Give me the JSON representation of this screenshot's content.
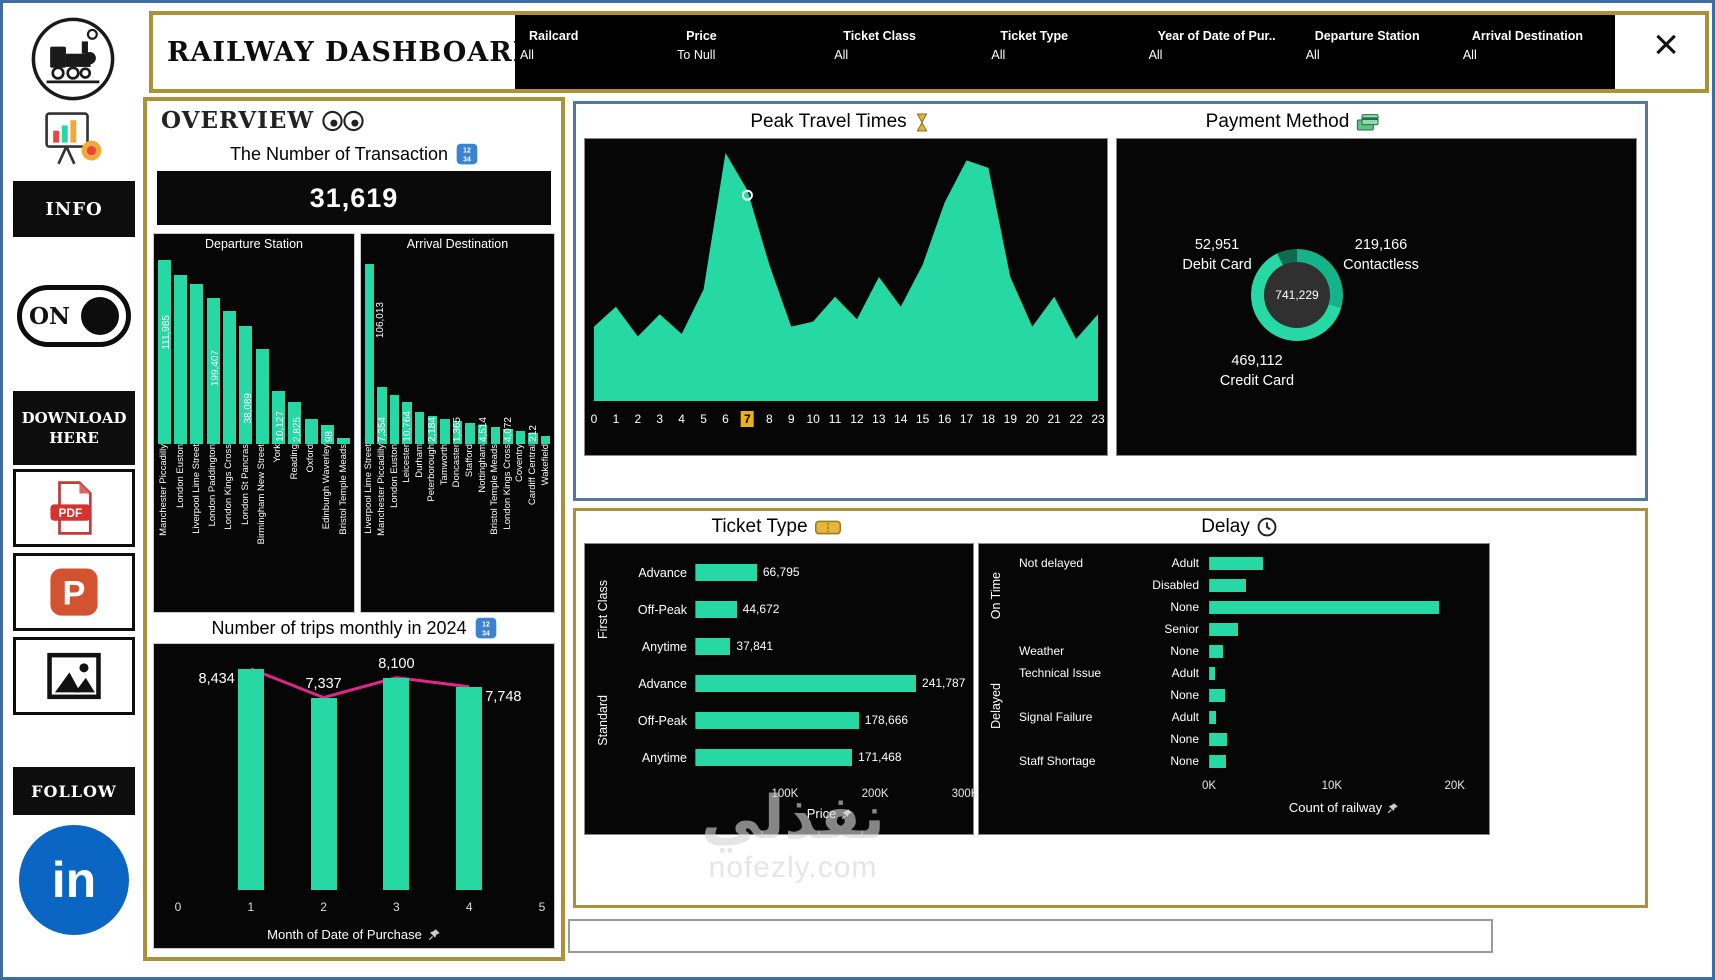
{
  "colors": {
    "teal": "#26D9A4",
    "gold": "#AB9239",
    "pink": "#E0268C",
    "highlight": "#EDB211",
    "panel_blue": "#54779E",
    "linkedin_blue": "#0A66C2"
  },
  "sidebar": {
    "info": "INFO",
    "toggle": "ON",
    "download": "DOWNLOAD HERE",
    "follow": "FOLLOW",
    "pdf": "PDF",
    "ppt": "P",
    "linkedin": "in"
  },
  "header": {
    "title": "RAILWAY DASHBOARD",
    "close_label": "×",
    "filters": [
      {
        "label": "Railcard",
        "value": "All"
      },
      {
        "label": "Price",
        "value": "To Null"
      },
      {
        "label": "Ticket Class",
        "value": "All"
      },
      {
        "label": "Ticket Type",
        "value": "All"
      },
      {
        "label": "Year of Date of Pur..",
        "value": "All"
      },
      {
        "label": "Departure Station",
        "value": "All"
      },
      {
        "label": "Arrival Destination",
        "value": "All"
      }
    ]
  },
  "overview": {
    "section_title": "OVERVIEW",
    "transaction_title": "The Number of Transaction",
    "transaction_value": "31,619"
  },
  "chart_data": {
    "departure_station": {
      "type": "bar",
      "title": "Departure Station",
      "categories": [
        "Manchester Piccadilly",
        "London Euston",
        "Liverpool Lime Street",
        "London Paddington",
        "London Kings Cross",
        "London St Pancras",
        "Birmingham New Street",
        "York",
        "Reading",
        "Oxford",
        "Edinburgh Waverley",
        "Bristol Temple Meads"
      ],
      "data_labels": [
        "",
        "111,985",
        "",
        "",
        "199,407",
        "",
        "38,089",
        "",
        "10,127",
        "2,825",
        "",
        "98"
      ],
      "values_pct": [
        97,
        89,
        84,
        77,
        70,
        62,
        50,
        28,
        22,
        13,
        10,
        3
      ]
    },
    "arrival_destination": {
      "type": "bar",
      "title": "Arrival Destination",
      "categories": [
        "Liverpool Lime Street",
        "Manchester Piccadilly",
        "London Euston",
        "Leicester",
        "Durham",
        "Peterborough",
        "Tamworth",
        "Doncaster",
        "Stafford",
        "Nottingham",
        "Bristol Temple Meads",
        "London Kings Cross",
        "Coventry",
        "Cardiff Central",
        "Wakefield"
      ],
      "data_labels": [
        "106,013",
        "",
        "7,354",
        "",
        "10,764",
        "",
        "2,184",
        "",
        "1,365",
        "",
        "4,514",
        "",
        "4,072",
        "",
        "212"
      ],
      "values_pct": [
        95,
        30,
        26,
        22,
        17,
        15,
        13,
        12,
        11,
        10,
        9,
        8,
        7,
        6,
        4
      ]
    },
    "monthly_trips": {
      "type": "bar-line",
      "title": "Number of trips monthly in 2024",
      "xlabel": "Month of Date of Purchase",
      "x": [
        1,
        2,
        3,
        4
      ],
      "values": [
        8434,
        7337,
        8100,
        7748
      ],
      "data_labels": [
        "8,434",
        "7,337",
        "8,100",
        "7,748"
      ],
      "x_ticks": [
        "0",
        "1",
        "2",
        "3",
        "4",
        "5"
      ],
      "ylim": [
        0,
        9000
      ]
    },
    "peak_travel_times": {
      "type": "area",
      "title": "Peak Travel Times",
      "x_ticks": [
        "0",
        "1",
        "2",
        "3",
        "4",
        "5",
        "6",
        "7",
        "8",
        "9",
        "10",
        "11",
        "12",
        "13",
        "14",
        "15",
        "16",
        "17",
        "18",
        "19",
        "20",
        "21",
        "22",
        "23"
      ],
      "values_pct": [
        30,
        38,
        26,
        35,
        27,
        45,
        100,
        85,
        55,
        30,
        32,
        42,
        33,
        50,
        38,
        55,
        80,
        97,
        94,
        50,
        30,
        42,
        25,
        35
      ],
      "selected_hour": "7"
    },
    "payment_method": {
      "type": "donut",
      "title": "Payment Method",
      "center_total": "741,229",
      "segments": [
        {
          "label": "Contactless",
          "value": "219,166",
          "pct": 29.6,
          "color": "#15B389"
        },
        {
          "label": "Credit Card",
          "value": "469,112",
          "pct": 63.3,
          "color": "#26D9A4"
        },
        {
          "label": "Debit Card",
          "value": "52,951",
          "pct": 7.1,
          "color": "#0C6B51"
        }
      ]
    },
    "ticket_type": {
      "type": "hbar",
      "title": "Ticket Type",
      "xlabel": "Price",
      "x_ticks": [
        {
          "label": "100K",
          "pct": 33.3
        },
        {
          "label": "200K",
          "pct": 66.7
        },
        {
          "label": "300K",
          "pct": 100
        }
      ],
      "groups": [
        {
          "name": "First Class",
          "rows": [
            {
              "category": "Advance",
              "value": "66,795",
              "pct": 22.3
            },
            {
              "category": "Off-Peak",
              "value": "44,672",
              "pct": 14.9
            },
            {
              "category": "Anytime",
              "value": "37,841",
              "pct": 12.6
            }
          ]
        },
        {
          "name": "Standard",
          "rows": [
            {
              "category": "Advance",
              "value": "241,787",
              "pct": 80.6
            },
            {
              "category": "Off-Peak",
              "value": "178,666",
              "pct": 59.6
            },
            {
              "category": "Anytime",
              "value": "171,468",
              "pct": 57.2
            }
          ]
        }
      ]
    },
    "delay": {
      "type": "hbar",
      "title": "Delay",
      "xlabel": "Count of railway",
      "x_ticks": [
        {
          "label": "0K",
          "pct": 0
        },
        {
          "label": "10K",
          "pct": 45.5
        },
        {
          "label": "20K",
          "pct": 91
        }
      ],
      "groups": [
        {
          "name": "On Time",
          "rows": [
            {
              "reason": "Not delayed",
              "railcard": "Adult",
              "pct": 19.6
            },
            {
              "reason": "",
              "railcard": "Disabled",
              "pct": 13.2
            },
            {
              "reason": "",
              "railcard": "None",
              "pct": 85.1
            },
            {
              "reason": "",
              "railcard": "Senior",
              "pct": 10.5
            }
          ]
        },
        {
          "name": "Delayed",
          "rows": [
            {
              "reason": "Weather",
              "railcard": "None",
              "pct": 5.0
            },
            {
              "reason": "Technical Issue",
              "railcard": "Adult",
              "pct": 1.8
            },
            {
              "reason": "",
              "railcard": "None",
              "pct": 5.5
            },
            {
              "reason": "Signal Failure",
              "railcard": "Adult",
              "pct": 2.3
            },
            {
              "reason": "",
              "railcard": "None",
              "pct": 6.4
            },
            {
              "reason": "Staff Shortage",
              "railcard": "None",
              "pct": 5.9
            }
          ]
        }
      ]
    }
  },
  "watermark": {
    "line1": "نفذلي",
    "line2": "nofezly.com"
  }
}
